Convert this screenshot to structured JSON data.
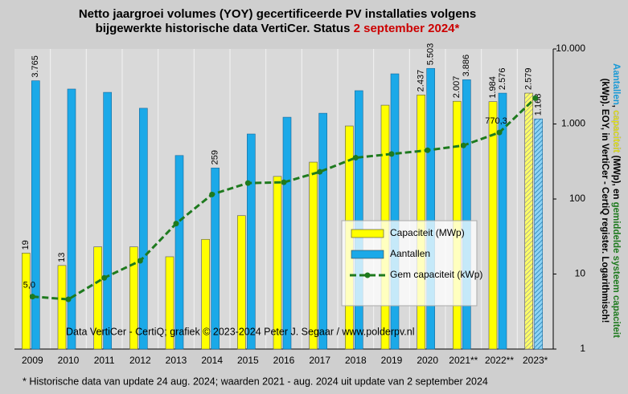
{
  "chart_data": {
    "type": "bar",
    "log_scale": true,
    "title_lines": [
      "Netto jaargroei volumes (YOY) gecertificeerde PV installaties volgens",
      "bijgewerkte historische data VertiCer. Status "
    ],
    "title_highlight": "2 september 2024*",
    "title_highlight_color": "#cc0000",
    "y_label_lines": [
      [
        {
          "text": "Aantallen",
          "color": "#1b9ad6"
        },
        {
          "text": ", ",
          "color": "#000000"
        },
        {
          "text": "capaciteit",
          "color": "#e8e800"
        },
        {
          "text": " (MWp), en ",
          "color": "#000000"
        },
        {
          "text": "gemiddelde systeem capaciteit",
          "color": "#1e7a1e"
        }
      ],
      [
        {
          "text": "(kWp). EOY, in VertiCer - CertiQ register. Logarithmisch!",
          "color": "#000000"
        }
      ]
    ],
    "annotation": "Data VertiCer - CertiQ;  grafiek © 2023-2024  Peter J. Segaar / www.polderpv.nl",
    "footnote": "* Historische data van update 24 aug. 2024; waarden 2021 - aug. 2024 uit update van 2 september 2024",
    "categories": [
      "2009",
      "2010",
      "2011",
      "2012",
      "2013",
      "2014",
      "2015",
      "2016",
      "2017",
      "2018",
      "2019",
      "2020",
      "2021**",
      "2022**",
      "2023*"
    ],
    "ylim": [
      1,
      10000
    ],
    "yticks": [
      1,
      10,
      100,
      {
        "value": 1000,
        "label": "1.000"
      },
      {
        "value": 10000,
        "label": "10.000"
      }
    ],
    "grid": true,
    "legend": "center-right",
    "series": [
      {
        "name": "Capaciteit (MWp)",
        "color": "#ffff00",
        "kind": "bar",
        "values": [
          19,
          13,
          23,
          23,
          17,
          29,
          60,
          200,
          310,
          940,
          1780,
          2437,
          2007,
          1984,
          2579
        ],
        "value_labels": [
          "19",
          "13",
          null,
          null,
          null,
          null,
          null,
          null,
          null,
          null,
          null,
          "2.437",
          "2.007",
          "1.984",
          "2.579"
        ],
        "hatched": [
          false,
          false,
          false,
          false,
          false,
          false,
          false,
          false,
          false,
          false,
          false,
          false,
          false,
          false,
          true
        ]
      },
      {
        "name": "Aantallen",
        "color": "#1ba9e8",
        "kind": "bar",
        "values": [
          3765,
          2920,
          2640,
          1620,
          380,
          259,
          735,
          1230,
          1390,
          2780,
          4660,
          5503,
          3886,
          2576,
          1168
        ],
        "value_labels": [
          "3.765",
          null,
          null,
          null,
          null,
          "259",
          null,
          null,
          null,
          null,
          null,
          "5.503",
          "3.886",
          "2.576",
          "1.168"
        ],
        "hatched": [
          false,
          false,
          false,
          false,
          false,
          false,
          false,
          false,
          false,
          false,
          false,
          false,
          false,
          false,
          true
        ]
      },
      {
        "name": "Gem capaciteit (kWp)",
        "color": "#1e7a1e",
        "kind": "line",
        "values": [
          5.0,
          4.6,
          8.9,
          15,
          47,
          115,
          163,
          167,
          230,
          355,
          398,
          446,
          517,
          770.3,
          2208
        ],
        "value_labels": [
          "5,0",
          null,
          null,
          null,
          null,
          null,
          null,
          null,
          null,
          null,
          null,
          null,
          null,
          "770,3",
          null
        ]
      }
    ]
  }
}
